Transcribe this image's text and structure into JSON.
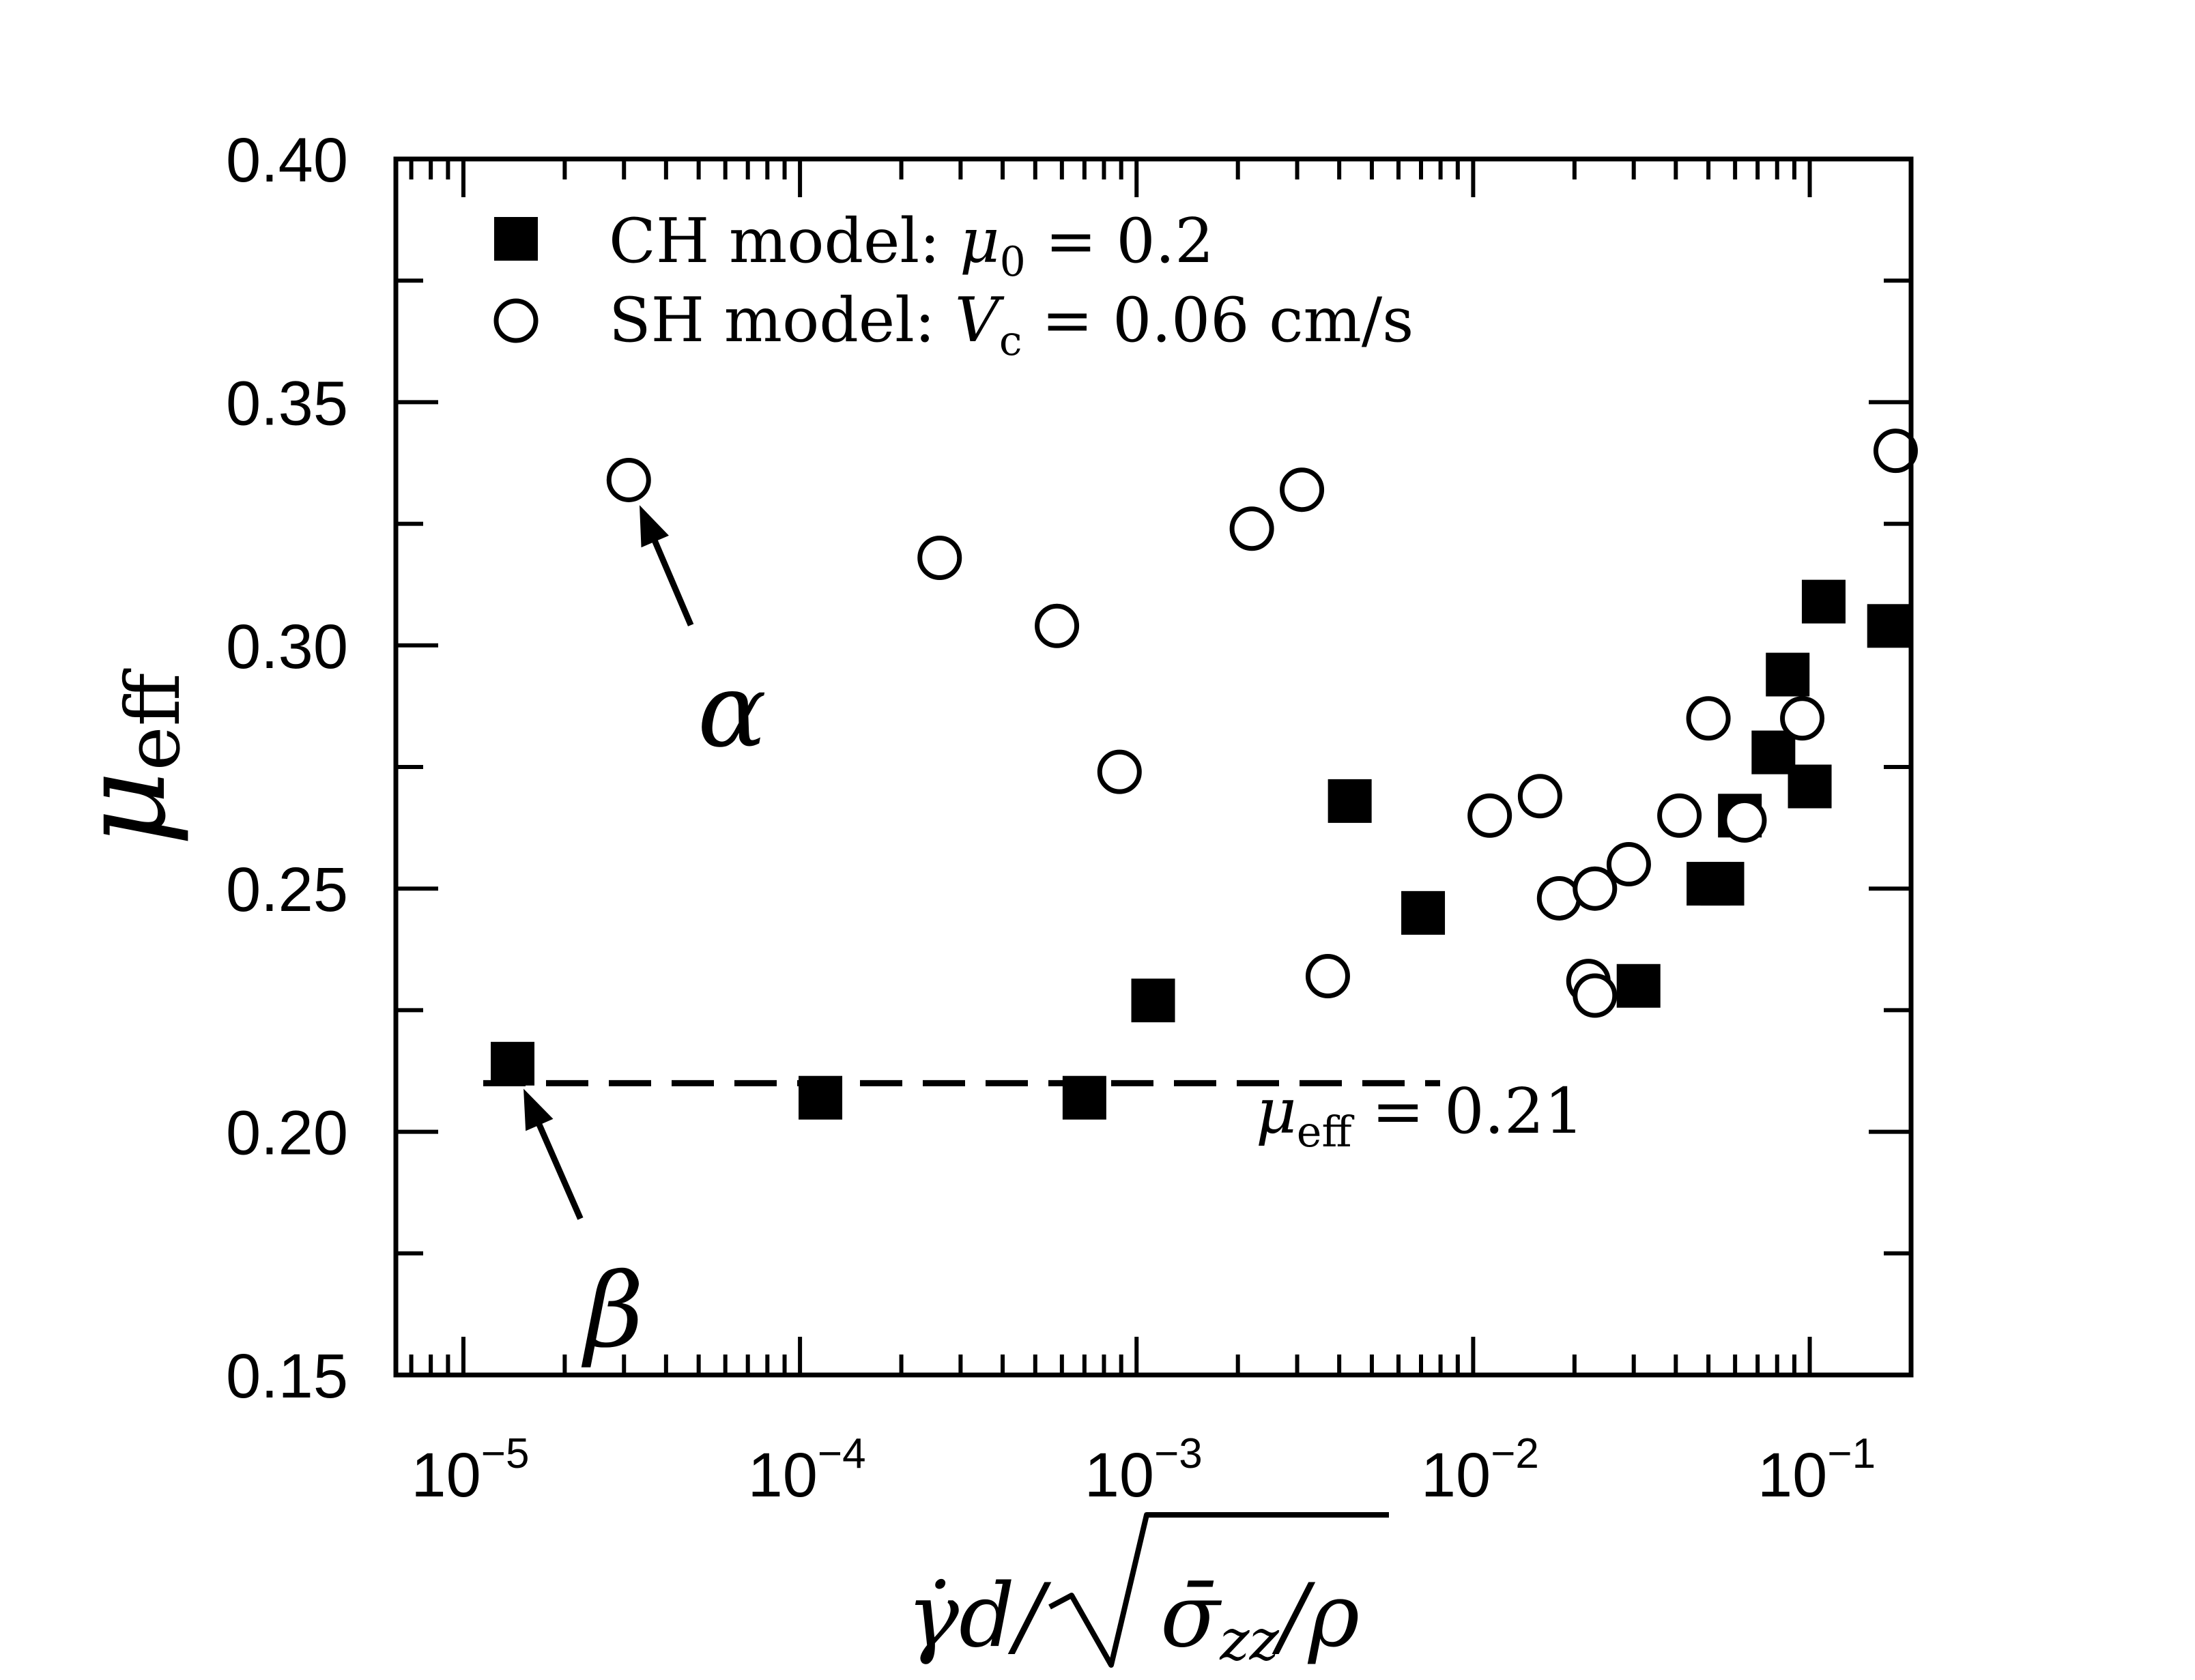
{
  "chart_data": {
    "type": "scatter",
    "x_scale": "log",
    "xlim": [
      6.3e-06,
      0.2
    ],
    "ylim": [
      0.15,
      0.4
    ],
    "xlabel": {
      "main": "γ̇d/",
      "sigma": "σ̄",
      "sub": "zz",
      "tail": "/ρ"
    },
    "ylabel": {
      "symbol": "μ",
      "sub": "eff"
    },
    "x_ticks": [
      {
        "value": 1e-05,
        "base": "10",
        "exp": "−5"
      },
      {
        "value": 0.0001,
        "base": "10",
        "exp": "−4"
      },
      {
        "value": 0.001,
        "base": "10",
        "exp": "−3"
      },
      {
        "value": 0.01,
        "base": "10",
        "exp": "−2"
      },
      {
        "value": 0.1,
        "base": "10",
        "exp": "−1"
      }
    ],
    "y_ticks": [
      {
        "value": 0.4,
        "label": "0.40"
      },
      {
        "value": 0.35,
        "label": "0.35"
      },
      {
        "value": 0.3,
        "label": "0.30"
      },
      {
        "value": 0.25,
        "label": "0.25"
      },
      {
        "value": 0.2,
        "label": "0.20"
      },
      {
        "value": 0.15,
        "label": "0.15"
      }
    ],
    "legend": {
      "position": "top-left",
      "entries": [
        {
          "marker": "filled-square",
          "text": "CH model: ",
          "symbol": "μ",
          "sub": "0",
          "rest": " = 0.2"
        },
        {
          "marker": "open-circle",
          "text": "SH model: ",
          "symbol": "V",
          "sub": "c",
          "rest": " = 0.06 cm/s"
        }
      ]
    },
    "series": [
      {
        "name": "CH model: μ0 = 0.2",
        "marker": "filled-square",
        "color": "#000000",
        "points": [
          {
            "x": 1.4e-05,
            "y": 0.214
          },
          {
            "x": 0.000115,
            "y": 0.207
          },
          {
            "x": 0.0007,
            "y": 0.207
          },
          {
            "x": 0.00112,
            "y": 0.227
          },
          {
            "x": 0.0043,
            "y": 0.268
          },
          {
            "x": 0.0071,
            "y": 0.245
          },
          {
            "x": 0.031,
            "y": 0.23
          },
          {
            "x": 0.05,
            "y": 0.251
          },
          {
            "x": 0.055,
            "y": 0.251
          },
          {
            "x": 0.062,
            "y": 0.265
          },
          {
            "x": 0.078,
            "y": 0.278
          },
          {
            "x": 0.086,
            "y": 0.294
          },
          {
            "x": 0.1,
            "y": 0.271
          },
          {
            "x": 0.11,
            "y": 0.309
          },
          {
            "x": 0.172,
            "y": 0.304
          }
        ]
      },
      {
        "name": "SH model: Vc = 0.06 cm/s",
        "marker": "open-circle",
        "color": "#000000",
        "points": [
          {
            "x": 3.1e-05,
            "y": 0.334
          },
          {
            "x": 0.00026,
            "y": 0.318
          },
          {
            "x": 0.00058,
            "y": 0.304
          },
          {
            "x": 0.00089,
            "y": 0.274
          },
          {
            "x": 0.0022,
            "y": 0.324
          },
          {
            "x": 0.0031,
            "y": 0.332
          },
          {
            "x": 0.0037,
            "y": 0.232
          },
          {
            "x": 0.0112,
            "y": 0.265
          },
          {
            "x": 0.0158,
            "y": 0.269
          },
          {
            "x": 0.018,
            "y": 0.248
          },
          {
            "x": 0.022,
            "y": 0.231
          },
          {
            "x": 0.023,
            "y": 0.228
          },
          {
            "x": 0.023,
            "y": 0.25
          },
          {
            "x": 0.029,
            "y": 0.255
          },
          {
            "x": 0.041,
            "y": 0.265
          },
          {
            "x": 0.05,
            "y": 0.285
          },
          {
            "x": 0.064,
            "y": 0.264
          },
          {
            "x": 0.095,
            "y": 0.285
          },
          {
            "x": 0.18,
            "y": 0.34
          }
        ]
      }
    ],
    "reference_line": {
      "y": 0.21,
      "style": "dashed",
      "label_symbol": "μ",
      "label_sub": "eff",
      "label_rest": " = 0.21"
    },
    "annotations": [
      {
        "text": "α",
        "target": {
          "x": 3.1e-05,
          "y": 0.334
        },
        "text_at": {
          "x": 5.1e-05,
          "y": 0.299
        }
      },
      {
        "text": "β",
        "target": {
          "x": 1.4e-05,
          "y": 0.214
        },
        "text_at": {
          "x": 2.4e-05,
          "y": 0.177
        }
      }
    ]
  }
}
